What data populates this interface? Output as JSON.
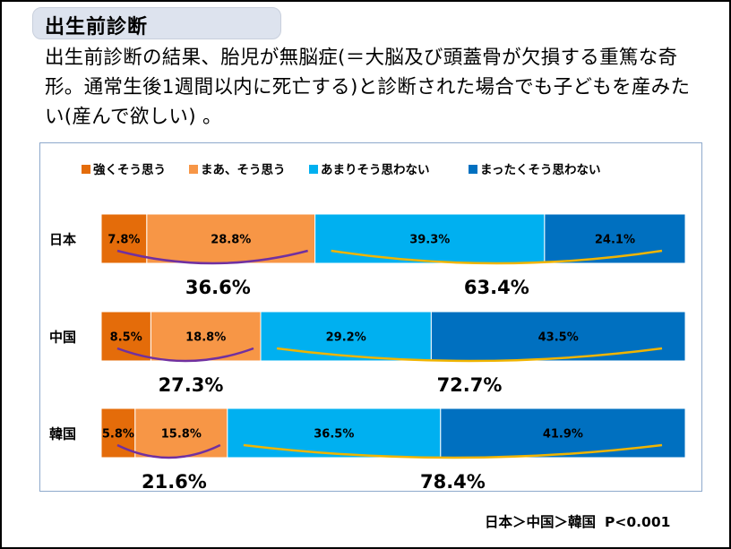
{
  "title": "出生前診断",
  "question": "出生前診断の結果、胎児が無脳症(＝大脳及び頭蓋骨が欠損する重篤な奇形。通常生後1週間以内に死亡する)と診断された場合でも子どもを産みたい(産んで欲しい) 。",
  "footer": {
    "comparison": "日本＞中国＞韓国",
    "pvalue": "P<0.001"
  },
  "chart_data": {
    "type": "bar",
    "orientation": "horizontal",
    "stacked": true,
    "normalized_percent": true,
    "categories": [
      "日本",
      "中国",
      "韓国"
    ],
    "series": [
      {
        "name": "強くそう思う",
        "color": "#e46c0a",
        "values": [
          7.8,
          8.5,
          5.8
        ]
      },
      {
        "name": "まあ、そう思う",
        "color": "#f79646",
        "values": [
          28.8,
          18.8,
          15.8
        ]
      },
      {
        "name": "あまりそう思わない",
        "color": "#00b0f0",
        "values": [
          39.3,
          29.2,
          36.5
        ]
      },
      {
        "name": "まったくそう思わない",
        "color": "#0070c0",
        "values": [
          24.1,
          43.5,
          41.9
        ]
      }
    ],
    "data_labels": [
      [
        "7.8%",
        "28.8%",
        "39.3%",
        "24.1%"
      ],
      [
        "8.5%",
        "18.8%",
        "29.2%",
        "43.5%"
      ],
      [
        "5.8%",
        "15.8%",
        "36.5%",
        "41.9%"
      ]
    ],
    "group_totals": [
      {
        "agree": "36.6%",
        "disagree": "63.4%"
      },
      {
        "agree": "27.3%",
        "disagree": "72.7%"
      },
      {
        "agree": "21.6%",
        "disagree": "78.4%"
      }
    ],
    "bracket_colors": {
      "agree": "#7030a0",
      "disagree": "#f0b400"
    },
    "legend_position": "top",
    "xlim": [
      0,
      100
    ]
  }
}
